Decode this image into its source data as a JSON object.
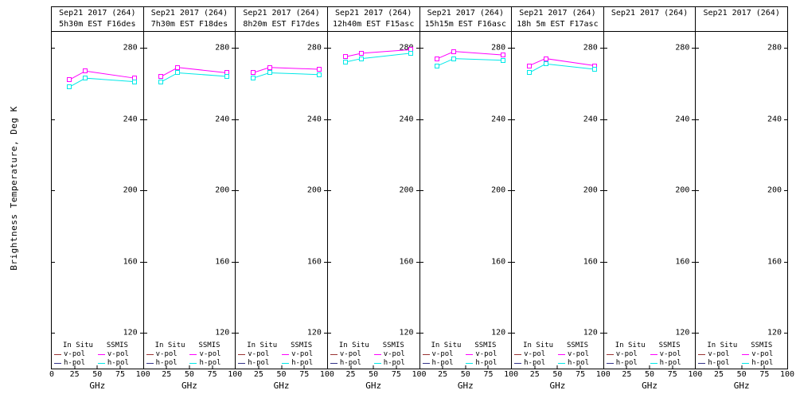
{
  "figure": {
    "y_axis_label": "Brightness Temperature, Deg K",
    "x_axis_label": "GHz"
  },
  "colors": {
    "insitu_v": "#993333",
    "insitu_h": "#333388",
    "ssmis_v": "#ff00ff",
    "ssmis_h": "#00e8e8",
    "axis": "#000000",
    "background": "#ffffff"
  },
  "legend": {
    "col1_header": "In Situ",
    "col2_header": "SSMIS",
    "vpol_label": "v-pol",
    "hpol_label": "h-pol"
  },
  "axes": {
    "y_ticks": [
      280,
      240,
      200,
      160,
      120
    ],
    "y_range": [
      100,
      289
    ],
    "x_ticks": [
      0,
      25,
      50,
      75,
      100
    ],
    "x_range": [
      0,
      100
    ]
  },
  "chart_data": {
    "type": "line",
    "x_frequencies_ghz": [
      19,
      37,
      91
    ],
    "ylabel": "Brightness Temperature, Deg K",
    "xlabel": "GHz",
    "ylim": [
      100,
      289
    ],
    "xlim": [
      0,
      100
    ],
    "panels": [
      {
        "title": "Sep21 2017 (264)",
        "subtitle": "5h30m EST F16des",
        "series": [
          {
            "name": "SSMIS v-pol",
            "color_key": "ssmis_v",
            "values": [
              262,
              267,
              263
            ]
          },
          {
            "name": "SSMIS h-pol",
            "color_key": "ssmis_h",
            "values": [
              258,
              263,
              261
            ]
          }
        ]
      },
      {
        "title": "Sep21 2017 (264)",
        "subtitle": "7h30m EST F18des",
        "series": [
          {
            "name": "SSMIS v-pol",
            "color_key": "ssmis_v",
            "values": [
              264,
              269,
              266
            ]
          },
          {
            "name": "SSMIS h-pol",
            "color_key": "ssmis_h",
            "values": [
              261,
              266,
              264
            ]
          }
        ]
      },
      {
        "title": "Sep21 2017 (264)",
        "subtitle": "8h20m EST F17des",
        "series": [
          {
            "name": "SSMIS v-pol",
            "color_key": "ssmis_v",
            "values": [
              266,
              269,
              268
            ]
          },
          {
            "name": "SSMIS h-pol",
            "color_key": "ssmis_h",
            "values": [
              263,
              266,
              265
            ]
          }
        ]
      },
      {
        "title": "Sep21 2017 (264)",
        "subtitle": "12h40m EST F15asc",
        "series": [
          {
            "name": "SSMIS v-pol",
            "color_key": "ssmis_v",
            "values": [
              275,
              277,
              279
            ]
          },
          {
            "name": "SSMIS h-pol",
            "color_key": "ssmis_h",
            "values": [
              272,
              274,
              277
            ]
          }
        ]
      },
      {
        "title": "Sep21 2017 (264)",
        "subtitle": "15h15m EST F16asc",
        "series": [
          {
            "name": "SSMIS v-pol",
            "color_key": "ssmis_v",
            "values": [
              274,
              278,
              276
            ]
          },
          {
            "name": "SSMIS h-pol",
            "color_key": "ssmis_h",
            "values": [
              270,
              274,
              273
            ]
          }
        ]
      },
      {
        "title": "Sep21 2017 (264)",
        "subtitle": "18h 5m EST F17asc",
        "series": [
          {
            "name": "SSMIS v-pol",
            "color_key": "ssmis_v",
            "values": [
              270,
              274,
              270
            ]
          },
          {
            "name": "SSMIS h-pol",
            "color_key": "ssmis_h",
            "values": [
              266,
              271,
              268
            ]
          }
        ]
      },
      {
        "title": "Sep21 2017 (264)",
        "subtitle": "",
        "series": []
      },
      {
        "title": "Sep21 2017 (264)",
        "subtitle": "",
        "series": []
      }
    ]
  }
}
